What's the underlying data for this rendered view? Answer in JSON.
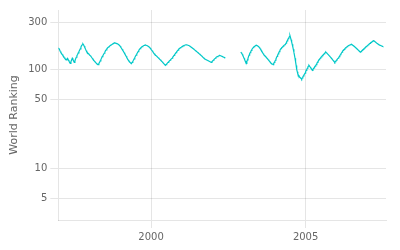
{
  "chart_data": {
    "type": "line",
    "ylabel": "World Ranking",
    "log": "y",
    "grid": true,
    "color": "#00c8c8",
    "xlim": [
      1997.0,
      2007.6
    ],
    "xticks": [
      2000,
      2005
    ],
    "ylim": [
      3,
      400
    ],
    "yticks": [
      5,
      10,
      50,
      100,
      300
    ],
    "series": [
      {
        "x": [
          1997,
          1997.0215,
          1997.043,
          1997.0645,
          1997.0861,
          1997.1076,
          1997.1291,
          1997.1506,
          1997.1721,
          1997.1936,
          1997.2151,
          1997.2367,
          1997.2582,
          1997.2797,
          1997.3012,
          1997.3227,
          1997.3442,
          1997.3657,
          1997.3873,
          1997.4088,
          1997.4303,
          1997.4518,
          1997.4733,
          1997.4948,
          1997.5163,
          1997.5378,
          1997.5594,
          1997.5809,
          1997.6024,
          1997.6239,
          1997.6454,
          1997.6669,
          1997.6884,
          1997.71,
          1997.7315,
          1997.753,
          1997.7745,
          1997.796,
          1997.8175,
          1997.839,
          1997.8606,
          1997.8821,
          1997.9036,
          1997.9251,
          1997.9466,
          1997.9681,
          1997.9896,
          1998.0112,
          1998.0327,
          1998.0542,
          1998.0757,
          1998.0972,
          1998.1187,
          1998.1402,
          1998.1618,
          1998.1833,
          1998.2048,
          1998.2263,
          1998.2478,
          1998.2693,
          1998.2908,
          1998.3124,
          1998.3339,
          1998.3554,
          1998.3769,
          1998.3984,
          1998.4199,
          1998.4414,
          1998.4629,
          1998.4845,
          1998.506,
          1998.5275,
          1998.549,
          1998.5705,
          1998.592,
          1998.6135,
          1998.6351,
          1998.6566,
          1998.6781,
          1998.6996,
          1998.7211,
          1998.7426,
          1998.7641,
          1998.7857,
          1998.8072,
          1998.8287,
          1998.8502,
          1998.8717,
          1998.8932,
          1998.9147,
          1998.9363,
          1998.9578,
          1998.9793,
          1999.0008,
          1999.0223,
          1999.0438,
          1999.0653,
          1999.0869,
          1999.1084,
          1999.1299,
          1999.1514,
          1999.1729,
          1999.1944,
          1999.2159,
          1999.2375,
          1999.259,
          1999.2805,
          1999.302,
          1999.3235,
          1999.345,
          1999.3665,
          1999.388,
          1999.4096,
          1999.4311,
          1999.4526,
          1999.4741,
          1999.4956,
          1999.5171,
          1999.5386,
          1999.5602,
          1999.5817,
          1999.6032,
          1999.6247,
          1999.6462,
          1999.6677,
          1999.6892,
          1999.7108,
          1999.7323,
          1999.7538,
          1999.7753,
          1999.7968,
          1999.8183,
          1999.8398,
          1999.8614,
          1999.8829,
          1999.9044,
          1999.9259,
          1999.9474,
          1999.9689,
          1999.9904,
          2000.012,
          2000.0335,
          2000.055,
          2000.0765,
          2000.098,
          2000.1195,
          2000.141,
          2000.1625,
          2000.1841,
          2000.2056,
          2000.2271,
          2000.2486,
          2000.2701,
          2000.2916,
          2000.3131,
          2000.3347,
          2000.3562,
          2000.3777,
          2000.3992,
          2000.4207,
          2000.4422,
          2000.4637,
          2000.4853,
          2000.5068,
          2000.5283,
          2000.5498,
          2000.5713,
          2000.5928,
          2000.6143,
          2000.6359,
          2000.6574,
          2000.6789,
          2000.7004,
          2000.7219,
          2000.7434,
          2000.7649,
          2000.7865,
          2000.808,
          2000.8295,
          2000.851,
          2000.8725,
          2000.894,
          2000.9155,
          2000.9371,
          2000.9586,
          2000.9801,
          2001.0016,
          2001.0231,
          2001.0446,
          2001.0661,
          2001.0876,
          2001.1092,
          2001.1307,
          2001.1522,
          2001.1737,
          2001.1952,
          2001.2167,
          2001.2382,
          2001.2598,
          2001.2813,
          2001.3028,
          2001.3243,
          2001.3458,
          2001.3673,
          2001.3888,
          2001.4104,
          2001.4319,
          2001.4534,
          2001.4749,
          2001.4964,
          2001.5179,
          2001.5394,
          2001.561,
          2001.5825,
          2001.604,
          2001.6255,
          2001.647,
          2001.6685,
          2001.69,
          2001.7116,
          2001.7331,
          2001.7546,
          2001.7761,
          2001.7976,
          2001.8191,
          2001.8406,
          2001.8622,
          2001.8837,
          2001.9052,
          2001.9267,
          2001.9482,
          2001.9697,
          2001.9912,
          2002.0127,
          2002.0343,
          2002.0558,
          2002.0773,
          2002.0988,
          2002.1203,
          2002.1418,
          2002.1633,
          2002.1849,
          2002.2064,
          2002.2279,
          2002.2494,
          2002.2709,
          2002.2924,
          2002.3139,
          2002.3355,
          2002.357,
          2002.3785,
          2002.4
        ],
        "values": [
          165,
          162,
          158,
          152,
          148,
          145,
          142,
          138,
          136,
          132,
          129,
          127,
          125,
          128,
          130,
          125,
          122,
          118,
          115,
          120,
          125,
          130,
          126,
          122,
          118,
          122,
          128,
          133,
          138,
          142,
          147,
          152,
          157,
          162,
          168,
          175,
          178,
          182,
          178,
          172,
          166,
          160,
          155,
          150,
          148,
          145,
          143,
          140,
          138,
          136,
          133,
          130,
          127,
          125,
          122,
          120,
          118,
          116,
          114,
          113,
          112,
          115,
          118,
          122,
          126,
          130,
          135,
          138,
          142,
          146,
          150,
          155,
          158,
          162,
          165,
          168,
          170,
          172,
          175,
          177,
          178,
          180,
          182,
          184,
          185,
          186,
          185,
          184,
          183,
          182,
          180,
          178,
          175,
          172,
          168,
          164,
          160,
          156,
          152,
          148,
          144,
          140,
          136,
          132,
          128,
          125,
          122,
          120,
          118,
          116,
          115,
          118,
          121,
          124,
          128,
          132,
          136,
          140,
          144,
          148,
          152,
          156,
          160,
          163,
          166,
          168,
          170,
          172,
          174,
          175,
          176,
          177,
          176,
          175,
          174,
          172,
          170,
          168,
          165,
          162,
          158,
          155,
          152,
          148,
          145,
          142,
          140,
          138,
          136,
          134,
          132,
          130,
          128,
          126,
          124,
          122,
          120,
          118,
          116,
          114,
          112,
          110,
          112,
          114,
          116,
          118,
          120,
          122,
          124,
          126,
          128,
          130,
          133,
          136,
          139,
          142,
          145,
          148,
          151,
          154,
          157,
          160,
          163,
          165,
          167,
          168,
          170,
          172,
          173,
          175,
          176,
          177,
          178,
          178,
          177,
          176,
          175,
          174,
          172,
          170,
          168,
          166,
          164,
          162,
          160,
          158,
          156,
          154,
          152,
          150,
          148,
          146,
          144,
          142,
          140,
          138,
          136,
          134,
          132,
          130,
          128,
          127,
          126,
          125,
          124,
          123,
          122,
          121,
          120,
          119,
          118,
          120,
          122,
          124,
          126,
          128,
          130,
          132,
          134,
          135,
          136,
          137,
          138,
          139,
          138,
          137,
          136,
          135,
          134,
          133,
          132,
          130
        ]
      },
      {
        "x": [
          2002.9,
          2002.9181,
          2002.9362,
          2002.9543,
          2002.9724,
          2002.9906,
          2003.0087,
          2003.0268,
          2003.0449,
          2003.063,
          2003.0811,
          2003.0992,
          2003.1173,
          2003.1354,
          2003.1535,
          2003.1717,
          2003.1898,
          2003.2079,
          2003.226,
          2003.2441,
          2003.2622,
          2003.2803,
          2003.2984,
          2003.3165,
          2003.3346,
          2003.3528,
          2003.3709,
          2003.389,
          2003.4071,
          2003.4252,
          2003.4433,
          2003.4614,
          2003.4795,
          2003.4976,
          2003.5157,
          2003.5339,
          2003.552,
          2003.5701,
          2003.5882,
          2003.6063,
          2003.6244,
          2003.6425,
          2003.6606,
          2003.6787,
          2003.6969,
          2003.715,
          2003.7331,
          2003.7512,
          2003.7693,
          2003.7874,
          2003.8055,
          2003.8236,
          2003.8417,
          2003.8598,
          2003.878,
          2003.8961,
          2003.9142,
          2003.9323,
          2003.9504,
          2003.9685,
          2003.9866,
          2004.0047,
          2004.0228,
          2004.0409,
          2004.0591,
          2004.0772,
          2004.0953,
          2004.1134,
          2004.1315,
          2004.1496,
          2004.1677,
          2004.1858,
          2004.2039,
          2004.222,
          2004.2402,
          2004.2583,
          2004.2764,
          2004.2945,
          2004.3126,
          2004.3307,
          2004.3488,
          2004.3669,
          2004.385,
          2004.4031,
          2004.4213,
          2004.4394,
          2004.4575,
          2004.4756,
          2004.4937,
          2004.5118,
          2004.5299,
          2004.548,
          2004.5661,
          2004.5843,
          2004.6024,
          2004.6205,
          2004.6386,
          2004.6567,
          2004.6748,
          2004.6929,
          2004.711,
          2004.7291,
          2004.7472,
          2004.7654,
          2004.7835,
          2004.8016,
          2004.8197,
          2004.8378,
          2004.8559,
          2004.874,
          2004.8921,
          2004.9102,
          2004.9283,
          2004.9465,
          2004.9646,
          2004.9827,
          2005.0008,
          2005.0189,
          2005.037,
          2005.0551,
          2005.0732,
          2005.0913,
          2005.1094,
          2005.1276,
          2005.1457,
          2005.1638,
          2005.1819,
          2005.2,
          2005.2181,
          2005.2362,
          2005.2543,
          2005.2724,
          2005.2906,
          2005.3087,
          2005.3268,
          2005.3449,
          2005.363,
          2005.3811,
          2005.3992,
          2005.4173,
          2005.4354,
          2005.4535,
          2005.4717,
          2005.4898,
          2005.5079,
          2005.526,
          2005.5441,
          2005.5622,
          2005.5803,
          2005.5984,
          2005.6165,
          2005.6346,
          2005.6528,
          2005.6709,
          2005.689,
          2005.7071,
          2005.7252,
          2005.7433,
          2005.7614,
          2005.7795,
          2005.7976,
          2005.8157,
          2005.8339,
          2005.852,
          2005.8701,
          2005.8882,
          2005.9063,
          2005.9244,
          2005.9425,
          2005.9606,
          2005.9787,
          2005.9969,
          2006.015,
          2006.0331,
          2006.0512,
          2006.0693,
          2006.0874,
          2006.1055,
          2006.1236,
          2006.1417,
          2006.1598,
          2006.178,
          2006.1961,
          2006.2142,
          2006.2323,
          2006.2504,
          2006.2685,
          2006.2866,
          2006.3047,
          2006.3228,
          2006.3409,
          2006.3591,
          2006.3772,
          2006.3953,
          2006.4134,
          2006.4315,
          2006.4496,
          2006.4677,
          2006.4858,
          2006.5039,
          2006.522,
          2006.5402,
          2006.5583,
          2006.5764,
          2006.5945,
          2006.6126,
          2006.6307,
          2006.6488,
          2006.6669,
          2006.685,
          2006.7031,
          2006.7213,
          2006.7394,
          2006.7575,
          2006.7756,
          2006.7937,
          2006.8118,
          2006.8299,
          2006.848,
          2006.8661,
          2006.8843,
          2006.9024,
          2006.9205,
          2006.9386,
          2006.9567,
          2006.9748,
          2006.9929,
          2007.011,
          2007.0291,
          2007.0472,
          2007.0654,
          2007.0835,
          2007.1016,
          2007.1197,
          2007.1378,
          2007.1559,
          2007.174,
          2007.1921,
          2007.2102,
          2007.2283,
          2007.2465,
          2007.2646,
          2007.2827,
          2007.3008,
          2007.3189,
          2007.337,
          2007.3551,
          2007.3732,
          2007.3913,
          2007.4094,
          2007.4276,
          2007.4457,
          2007.4638,
          2007.4819,
          2007.5
        ],
        "values": [
          150,
          148,
          145,
          142,
          138,
          134,
          130,
          126,
          122,
          118,
          115,
          120,
          125,
          130,
          135,
          140,
          145,
          148,
          152,
          156,
          160,
          163,
          166,
          168,
          170,
          172,
          174,
          175,
          176,
          175,
          174,
          172,
          170,
          168,
          165,
          162,
          158,
          155,
          152,
          148,
          145,
          142,
          140,
          138,
          136,
          134,
          132,
          130,
          128,
          126,
          124,
          122,
          120,
          118,
          116,
          115,
          114,
          113,
          112,
          115,
          118,
          121,
          124,
          128,
          132,
          136,
          140,
          144,
          148,
          152,
          156,
          160,
          163,
          166,
          168,
          170,
          172,
          175,
          177,
          178,
          180,
          185,
          190,
          195,
          200,
          205,
          210,
          215,
          220,
          210,
          200,
          190,
          180,
          170,
          160,
          150,
          140,
          130,
          120,
          110,
          100,
          95,
          90,
          88,
          86,
          84,
          83,
          82,
          81,
          80,
          82,
          84,
          86,
          88,
          90,
          92,
          95,
          98,
          100,
          103,
          106,
          108,
          110,
          108,
          106,
          104,
          102,
          100,
          98,
          100,
          102,
          104,
          106,
          108,
          110,
          112,
          115,
          118,
          120,
          123,
          126,
          128,
          130,
          132,
          134,
          136,
          138,
          140,
          142,
          144,
          146,
          148,
          150,
          148,
          146,
          144,
          142,
          140,
          138,
          136,
          134,
          132,
          130,
          128,
          126,
          124,
          122,
          120,
          118,
          120,
          122,
          124,
          126,
          128,
          130,
          132,
          135,
          138,
          141,
          144,
          147,
          150,
          153,
          156,
          158,
          160,
          162,
          165,
          167,
          168,
          170,
          172,
          174,
          175,
          176,
          177,
          178,
          179,
          180,
          178,
          176,
          175,
          173,
          171,
          169,
          167,
          165,
          163,
          161,
          159,
          157,
          155,
          153,
          151,
          150,
          152,
          154,
          156,
          158,
          160,
          162,
          164,
          166,
          168,
          170,
          172,
          174,
          176,
          178,
          180,
          182,
          184,
          186,
          188,
          190,
          192,
          194,
          196,
          195,
          193,
          191,
          189,
          187,
          185,
          183,
          181,
          180,
          178,
          177,
          176,
          175,
          174,
          173,
          172,
          171
        ]
      }
    ]
  }
}
